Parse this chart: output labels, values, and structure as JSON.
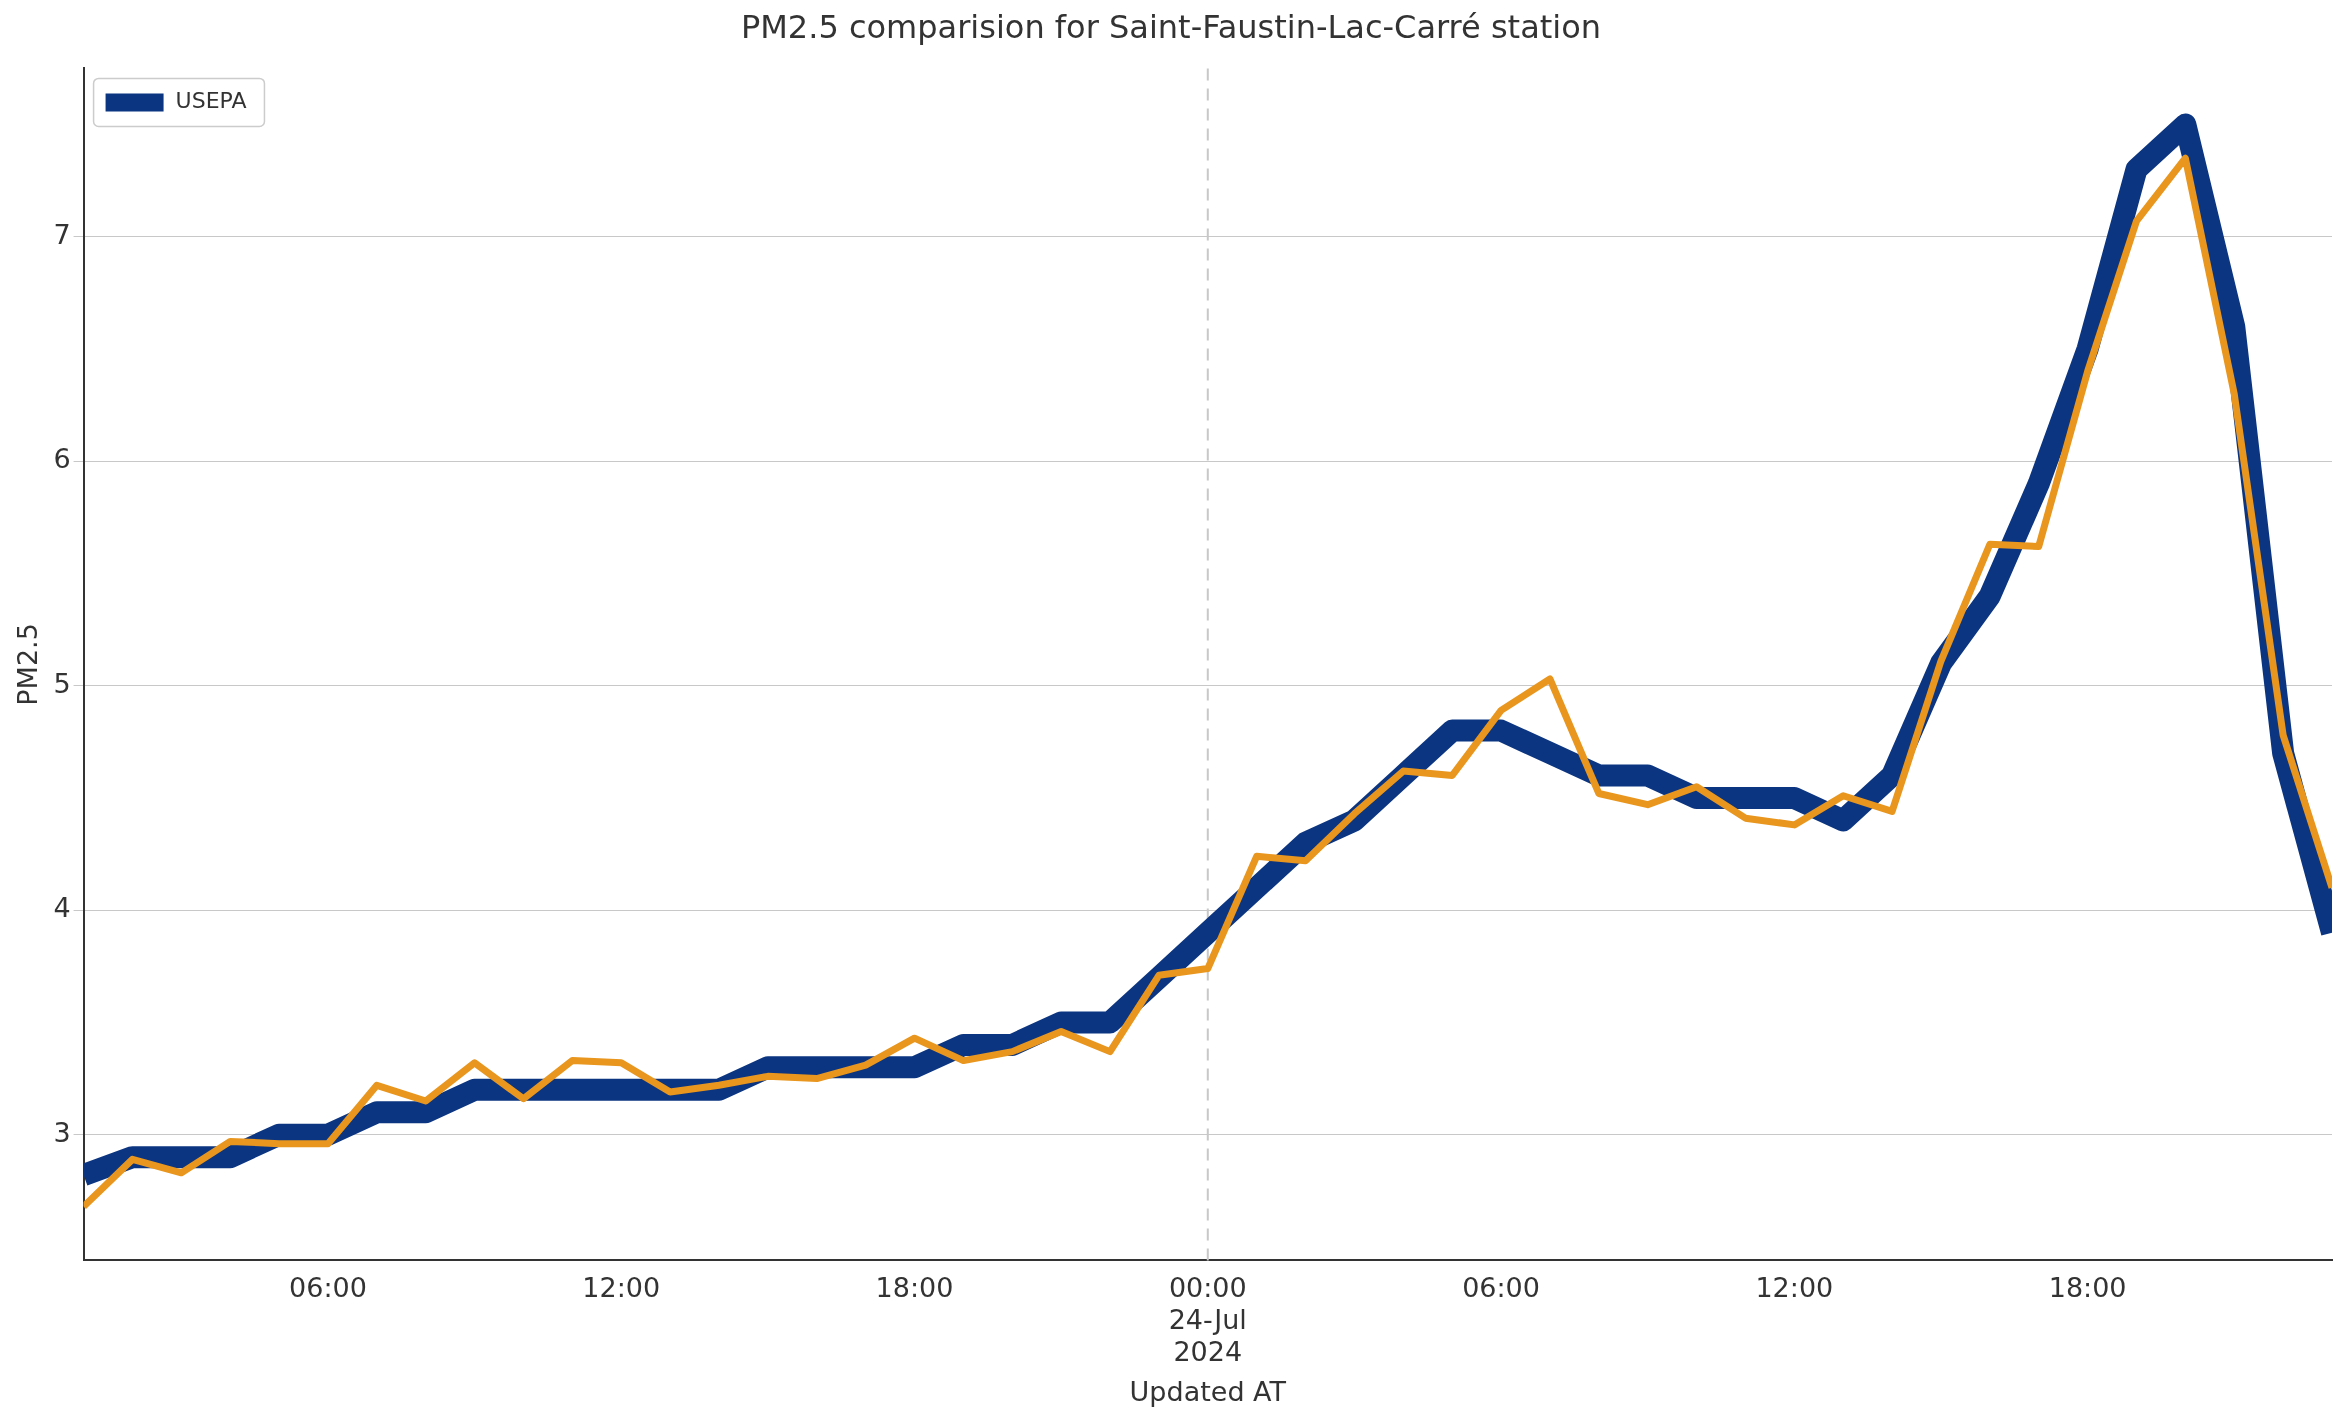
{
  "chart_data": {
    "type": "line",
    "title": "PM2.5 comparision for Saint-Faustin-Lac-Carré station",
    "xlabel": "Updated AT",
    "ylabel": "PM2.5",
    "x": [
      "2024-07-23T01:00",
      "2024-07-23T02:00",
      "2024-07-23T03:00",
      "2024-07-23T04:00",
      "2024-07-23T05:00",
      "2024-07-23T06:00",
      "2024-07-23T07:00",
      "2024-07-23T08:00",
      "2024-07-23T09:00",
      "2024-07-23T10:00",
      "2024-07-23T11:00",
      "2024-07-23T12:00",
      "2024-07-23T13:00",
      "2024-07-23T14:00",
      "2024-07-23T15:00",
      "2024-07-23T16:00",
      "2024-07-23T17:00",
      "2024-07-23T18:00",
      "2024-07-23T19:00",
      "2024-07-23T20:00",
      "2024-07-23T21:00",
      "2024-07-23T22:00",
      "2024-07-23T23:00",
      "2024-07-24T00:00",
      "2024-07-24T01:00",
      "2024-07-24T02:00",
      "2024-07-24T03:00",
      "2024-07-24T04:00",
      "2024-07-24T05:00",
      "2024-07-24T06:00",
      "2024-07-24T07:00",
      "2024-07-24T08:00",
      "2024-07-24T09:00",
      "2024-07-24T10:00",
      "2024-07-24T11:00",
      "2024-07-24T12:00",
      "2024-07-24T13:00",
      "2024-07-24T14:00",
      "2024-07-24T15:00",
      "2024-07-24T16:00",
      "2024-07-24T17:00",
      "2024-07-24T18:00",
      "2024-07-24T19:00",
      "2024-07-24T20:00",
      "2024-07-24T21:00",
      "2024-07-24T22:00",
      "2024-07-24T23:00"
    ],
    "series": [
      {
        "name": "USEPA",
        "color": "#0b3580",
        "values": [
          2.82,
          2.9,
          2.9,
          2.9,
          3.0,
          3.0,
          3.1,
          3.1,
          3.2,
          3.2,
          3.2,
          3.2,
          3.2,
          3.2,
          3.3,
          3.3,
          3.3,
          3.3,
          3.4,
          3.4,
          3.5,
          3.5,
          3.7,
          3.9,
          4.1,
          4.3,
          4.4,
          4.6,
          4.8,
          4.8,
          4.7,
          4.6,
          4.6,
          4.5,
          4.5,
          4.5,
          4.4,
          4.6,
          5.1,
          5.4,
          5.9,
          6.5,
          7.3,
          7.5,
          6.6,
          4.7,
          3.9
        ]
      },
      {
        "color": "#e8961e",
        "values": [
          2.68,
          2.89,
          2.83,
          2.97,
          2.96,
          2.96,
          3.22,
          3.15,
          3.32,
          3.16,
          3.33,
          3.32,
          3.19,
          3.22,
          3.26,
          3.25,
          3.31,
          3.43,
          3.33,
          3.37,
          3.46,
          3.37,
          3.71,
          3.74,
          4.24,
          4.22,
          4.43,
          4.62,
          4.6,
          4.89,
          5.03,
          4.52,
          4.47,
          4.55,
          4.41,
          4.38,
          4.51,
          4.44,
          5.11,
          5.63,
          5.62,
          6.4,
          7.07,
          7.35,
          6.3,
          4.78,
          4.1
        ]
      }
    ],
    "xlim": [
      "2024-07-23T01:00",
      "2024-07-24T23:00"
    ],
    "xticks": [
      {
        "value": "2024-07-23T06:00",
        "label": "06:00"
      },
      {
        "value": "2024-07-23T12:00",
        "label": "12:00"
      },
      {
        "value": "2024-07-23T18:00",
        "label": "18:00"
      },
      {
        "value": "2024-07-24T00:00",
        "label": "00:00\n24-Jul\n2024"
      },
      {
        "value": "2024-07-24T06:00",
        "label": "06:00"
      },
      {
        "value": "2024-07-24T12:00",
        "label": "12:00"
      },
      {
        "value": "2024-07-24T18:00",
        "label": "18:00"
      }
    ],
    "ylim": [
      2.44,
      7.75
    ],
    "yticks": [
      3,
      4,
      5,
      6,
      7
    ],
    "grid": "y",
    "legend": "top left",
    "marker": "none",
    "line_style": "solid",
    "ref_lines": [
      {
        "axis": "x",
        "value": "2024-07-24T00:00",
        "color": "#c8c8c8",
        "line_style": "dashed"
      }
    ]
  }
}
